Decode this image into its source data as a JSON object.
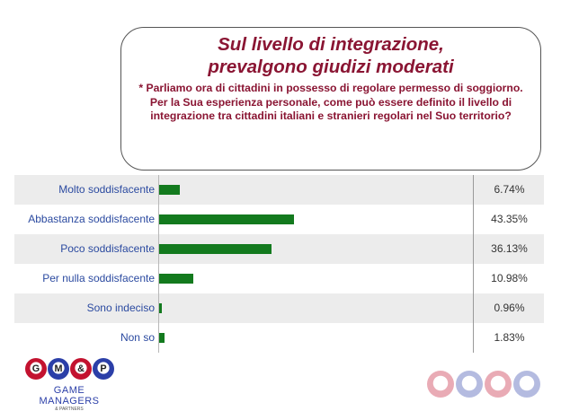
{
  "title": {
    "line1": "Sul livello di integrazione,",
    "line2": "prevalgono giudizi moderati",
    "question": "* Parliamo ora di cittadini in possesso di regolare permesso di soggiorno. Per la Sua esperienza personale, come può essere definito il livello di integrazione tra cittadini italiani e stranieri regolari nel Suo territorio?"
  },
  "chart_data": {
    "type": "bar",
    "orientation": "horizontal",
    "categories": [
      "Molto soddisfacente",
      "Abbastanza soddisfacente",
      "Poco soddisfacente",
      "Per nulla soddisfacente",
      "Sono indeciso",
      "Non so"
    ],
    "values": [
      6.74,
      43.35,
      36.13,
      10.98,
      0.96,
      1.83
    ],
    "value_labels": [
      "6.74%",
      "43.35%",
      "36.13%",
      "10.98%",
      "0.96%",
      "1.83%"
    ],
    "xlim": [
      0,
      100
    ],
    "bar_color": "#137a1e",
    "grid": false
  },
  "logo": {
    "line1": "GAME",
    "line2": "MANAGERS",
    "line3": "& PARTNERS",
    "balls": [
      "G",
      "M",
      "&",
      "P"
    ],
    "colors": [
      "#c3122f",
      "#2b3fa8",
      "#c3122f",
      "#2b3fa8"
    ]
  }
}
